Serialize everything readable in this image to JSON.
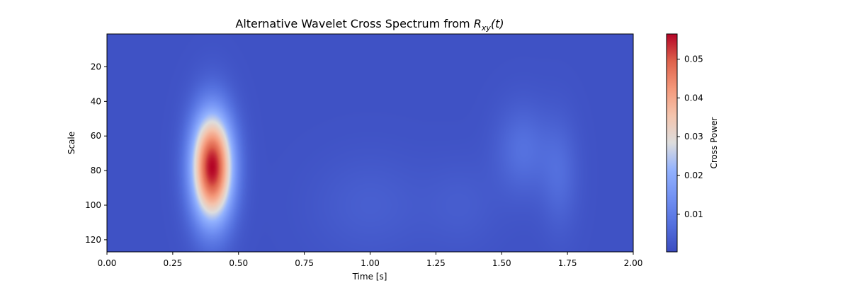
{
  "chart_data": {
    "type": "heatmap",
    "title_main": "Alternative Wavelet Cross Spectrum from ",
    "title_math_base": "R",
    "title_math_sub": "xy",
    "title_math_tail": "(t)",
    "xlabel": "Time [s]",
    "ylabel": "Scale",
    "colorbar_label": "Cross Power",
    "colormap": "coolwarm",
    "xlim": [
      0,
      2
    ],
    "ylim": [
      127,
      1
    ],
    "x_ticks": [
      0,
      0.25,
      0.5,
      0.75,
      1.0,
      1.25,
      1.5,
      1.75,
      2.0
    ],
    "x_tick_labels": [
      "0.00",
      "0.25",
      "0.50",
      "0.75",
      "1.00",
      "1.25",
      "1.50",
      "1.75",
      "2.00"
    ],
    "y_ticks": [
      20,
      40,
      60,
      80,
      100,
      120
    ],
    "y_tick_labels": [
      "20",
      "40",
      "60",
      "80",
      "100",
      "120"
    ],
    "clim": [
      0.0003,
      0.0565
    ],
    "colorbar_ticks": [
      0.01,
      0.02,
      0.03,
      0.04,
      0.05
    ],
    "colorbar_tick_labels": [
      "0.01",
      "0.02",
      "0.03",
      "0.04",
      "0.05"
    ],
    "background_value": 0.0015,
    "features": [
      {
        "time": 0.4,
        "scale": 78,
        "time_sigma": 0.055,
        "scale_sigma": 22,
        "peak": 0.055
      },
      {
        "time": 1.58,
        "scale": 68,
        "time_sigma": 0.07,
        "scale_sigma": 18,
        "peak": 0.006
      },
      {
        "time": 1.72,
        "scale": 82,
        "time_sigma": 0.05,
        "scale_sigma": 22,
        "peak": 0.005
      },
      {
        "time": 1.0,
        "scale": 100,
        "time_sigma": 0.15,
        "scale_sigma": 20,
        "peak": 0.0025
      },
      {
        "time": 1.35,
        "scale": 100,
        "time_sigma": 0.1,
        "scale_sigma": 18,
        "peak": 0.002
      }
    ]
  }
}
